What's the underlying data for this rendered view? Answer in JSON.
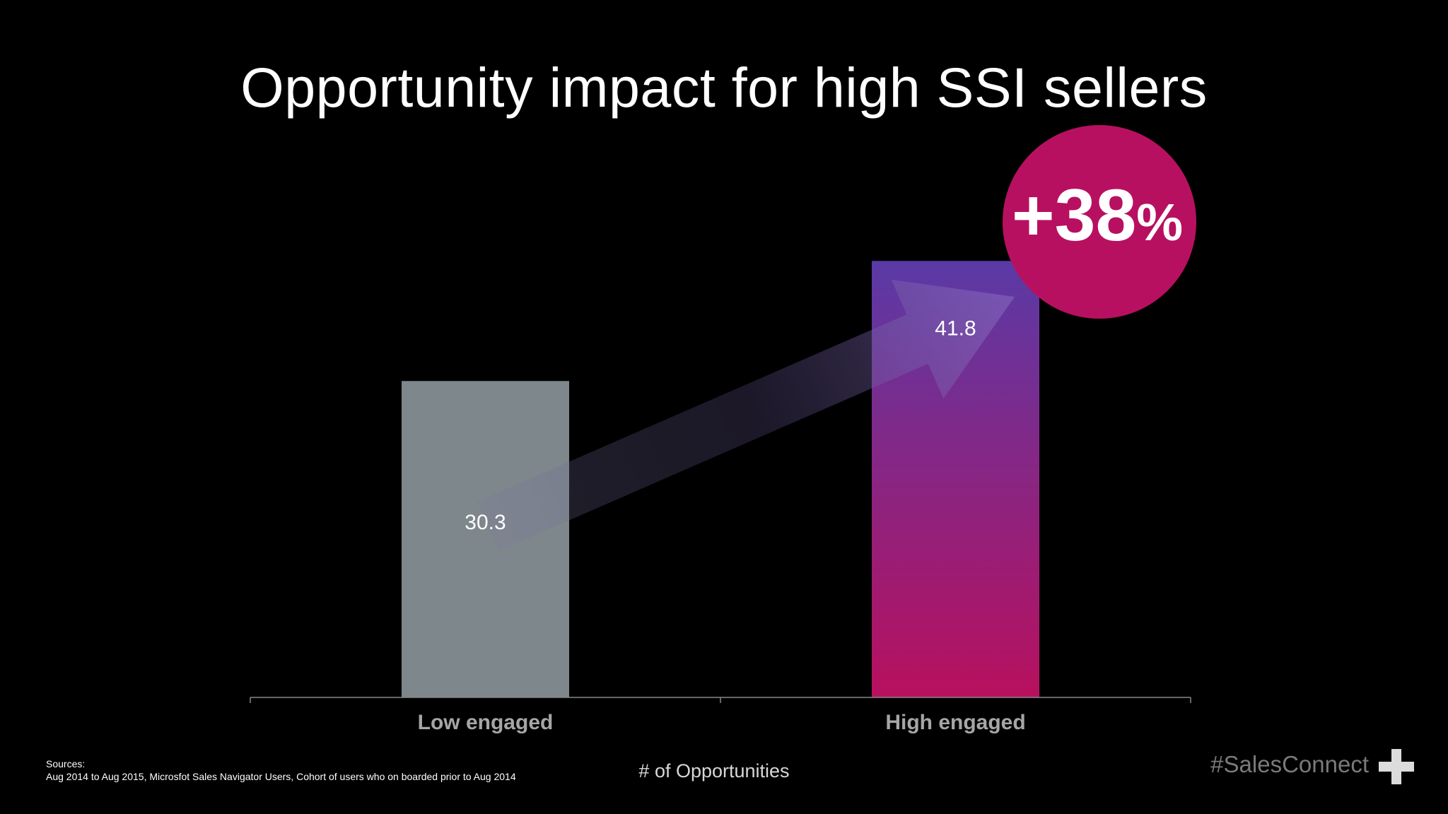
{
  "title": "Opportunity impact for high SSI sellers",
  "chart_data": {
    "type": "bar",
    "title": "Opportunity impact for high SSI sellers",
    "categories": [
      "Low engaged",
      "High engaged"
    ],
    "values": [
      30.3,
      41.8
    ],
    "value_labels": [
      "30.3",
      "41.8"
    ],
    "xlabel": "# of Opportunities",
    "ylim": [
      0,
      45
    ],
    "grid": false,
    "legend": "none",
    "annotation": "+38%"
  },
  "callout": {
    "value": "+38",
    "unit": "%"
  },
  "metric_label": "# of Opportunities",
  "sources": {
    "heading": "Sources:",
    "text": "Aug 2014 to Aug 2015, Microsfot Sales Navigator Users, Cohort of users who on boarded prior to Aug 2014"
  },
  "hashtag": "#SalesConnect",
  "colors": {
    "background": "#000000",
    "low_bar": "#7e878b",
    "high_bar_top": "#5a3aa6",
    "high_bar_bottom": "#b8105e",
    "callout_circle": "#b81060",
    "axis": "#888888",
    "category_label": "#a6a6a6"
  }
}
